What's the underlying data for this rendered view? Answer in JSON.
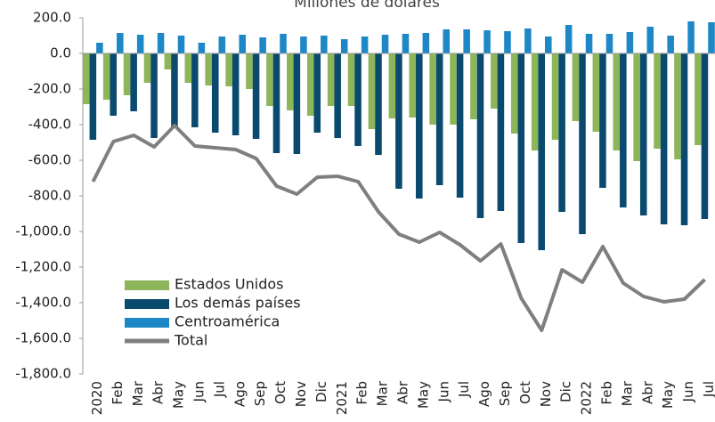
{
  "chart_data": {
    "type": "bar_line",
    "title": "Millones de dólares",
    "categories": [
      "2020",
      "Feb",
      "Mar",
      "Abr",
      "May",
      "Jun",
      "Jul",
      "Ago",
      "Sep",
      "Oct",
      "Nov",
      "Dic",
      "2021",
      "Feb",
      "Mar",
      "Abr",
      "May",
      "Jun",
      "Jul",
      "Ago",
      "Sep",
      "Oct",
      "Nov",
      "Dic",
      "2022",
      "Feb",
      "Mar",
      "Abr",
      "May",
      "Jun",
      "Jul"
    ],
    "series": [
      {
        "name": "Estados Unidos",
        "color": "#8db559",
        "kind": "bar",
        "values": [
          -285,
          -260,
          -235,
          -165,
          -90,
          -165,
          -180,
          -185,
          -200,
          -295,
          -320,
          -350,
          -295,
          -295,
          -425,
          -365,
          -360,
          -400,
          -400,
          -370,
          -310,
          -450,
          -545,
          -485,
          -380,
          -440,
          -545,
          -605,
          -535,
          -595,
          -515
        ]
      },
      {
        "name": "Los demás países",
        "color": "#0a4a6e",
        "kind": "bar",
        "values": [
          -485,
          -350,
          -325,
          -475,
          -415,
          -415,
          -445,
          -460,
          -480,
          -560,
          -565,
          -445,
          -475,
          -520,
          -570,
          -760,
          -815,
          -740,
          -810,
          -925,
          -885,
          -1065,
          -1105,
          -890,
          -1015,
          -755,
          -865,
          -910,
          -960,
          -965,
          -930
        ]
      },
      {
        "name": "Centroamérica",
        "color": "#1e88c7",
        "kind": "bar",
        "values": [
          60,
          115,
          105,
          115,
          100,
          60,
          95,
          105,
          90,
          110,
          95,
          100,
          80,
          95,
          105,
          110,
          115,
          135,
          135,
          130,
          125,
          140,
          95,
          160,
          110,
          110,
          120,
          150,
          100,
          180,
          175
        ]
      },
      {
        "name": "Total",
        "color": "#7f7f7f",
        "kind": "line",
        "values": [
          -720,
          -495,
          -460,
          -525,
          -405,
          -520,
          -530,
          -540,
          -590,
          -745,
          -790,
          -695,
          -690,
          -720,
          -890,
          -1015,
          -1060,
          -1005,
          -1075,
          -1165,
          -1070,
          -1375,
          -1555,
          -1215,
          -1285,
          -1085,
          -1290,
          -1365,
          -1395,
          -1380,
          -1270
        ]
      }
    ],
    "ylim": [
      -1800,
      200
    ],
    "yticks": [
      {
        "value": 200,
        "label": "200.0"
      },
      {
        "value": 0,
        "label": "0.0"
      },
      {
        "value": -200,
        "label": "-200.0"
      },
      {
        "value": -400,
        "label": "-400.0"
      },
      {
        "value": -600,
        "label": "-600.0"
      },
      {
        "value": -800,
        "label": "-800.0"
      },
      {
        "value": -1000,
        "label": "-1,000.0"
      },
      {
        "value": -1200,
        "label": "-1,200.0"
      },
      {
        "value": -1400,
        "label": "-1,400.0"
      },
      {
        "value": -1600,
        "label": "-1,600.0"
      },
      {
        "value": -1800,
        "label": "-1,800.0"
      }
    ],
    "legend": "lower-left"
  }
}
